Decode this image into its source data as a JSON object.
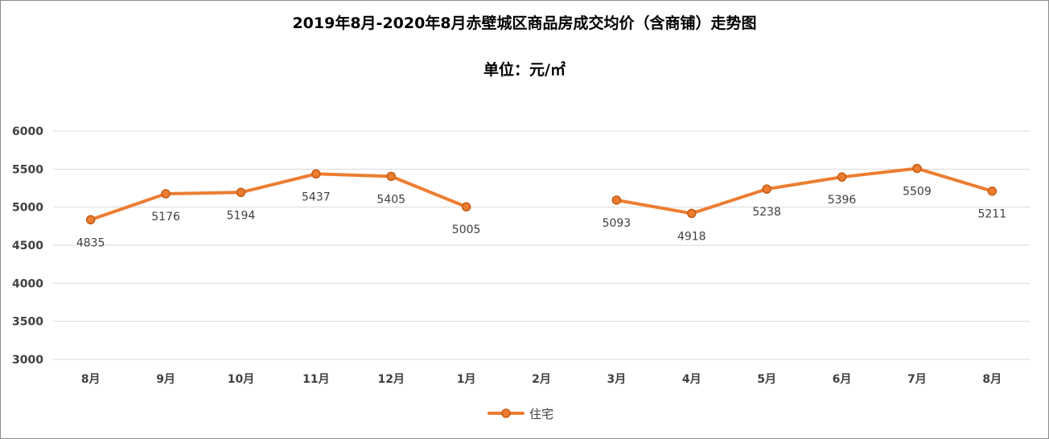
{
  "chart_data": {
    "type": "line",
    "title": "2019年8月-2020年8月赤壁城区商品房成交均价（含商铺）走势图",
    "subtitle": "单位：元/㎡",
    "categories": [
      "8月",
      "9月",
      "10月",
      "11月",
      "12月",
      "1月",
      "2月",
      "3月",
      "4月",
      "5月",
      "6月",
      "7月",
      "8月"
    ],
    "series": [
      {
        "name": "住宅",
        "color": "#ed7d31",
        "values": [
          4835,
          5176,
          5194,
          5437,
          5405,
          5005,
          null,
          5093,
          4918,
          5238,
          5396,
          5509,
          5211
        ]
      }
    ],
    "ylim": [
      3000,
      6000
    ],
    "yticks": [
      3000,
      3500,
      4000,
      4500,
      5000,
      5500,
      6000
    ],
    "grid": true,
    "legend": "bottom"
  }
}
